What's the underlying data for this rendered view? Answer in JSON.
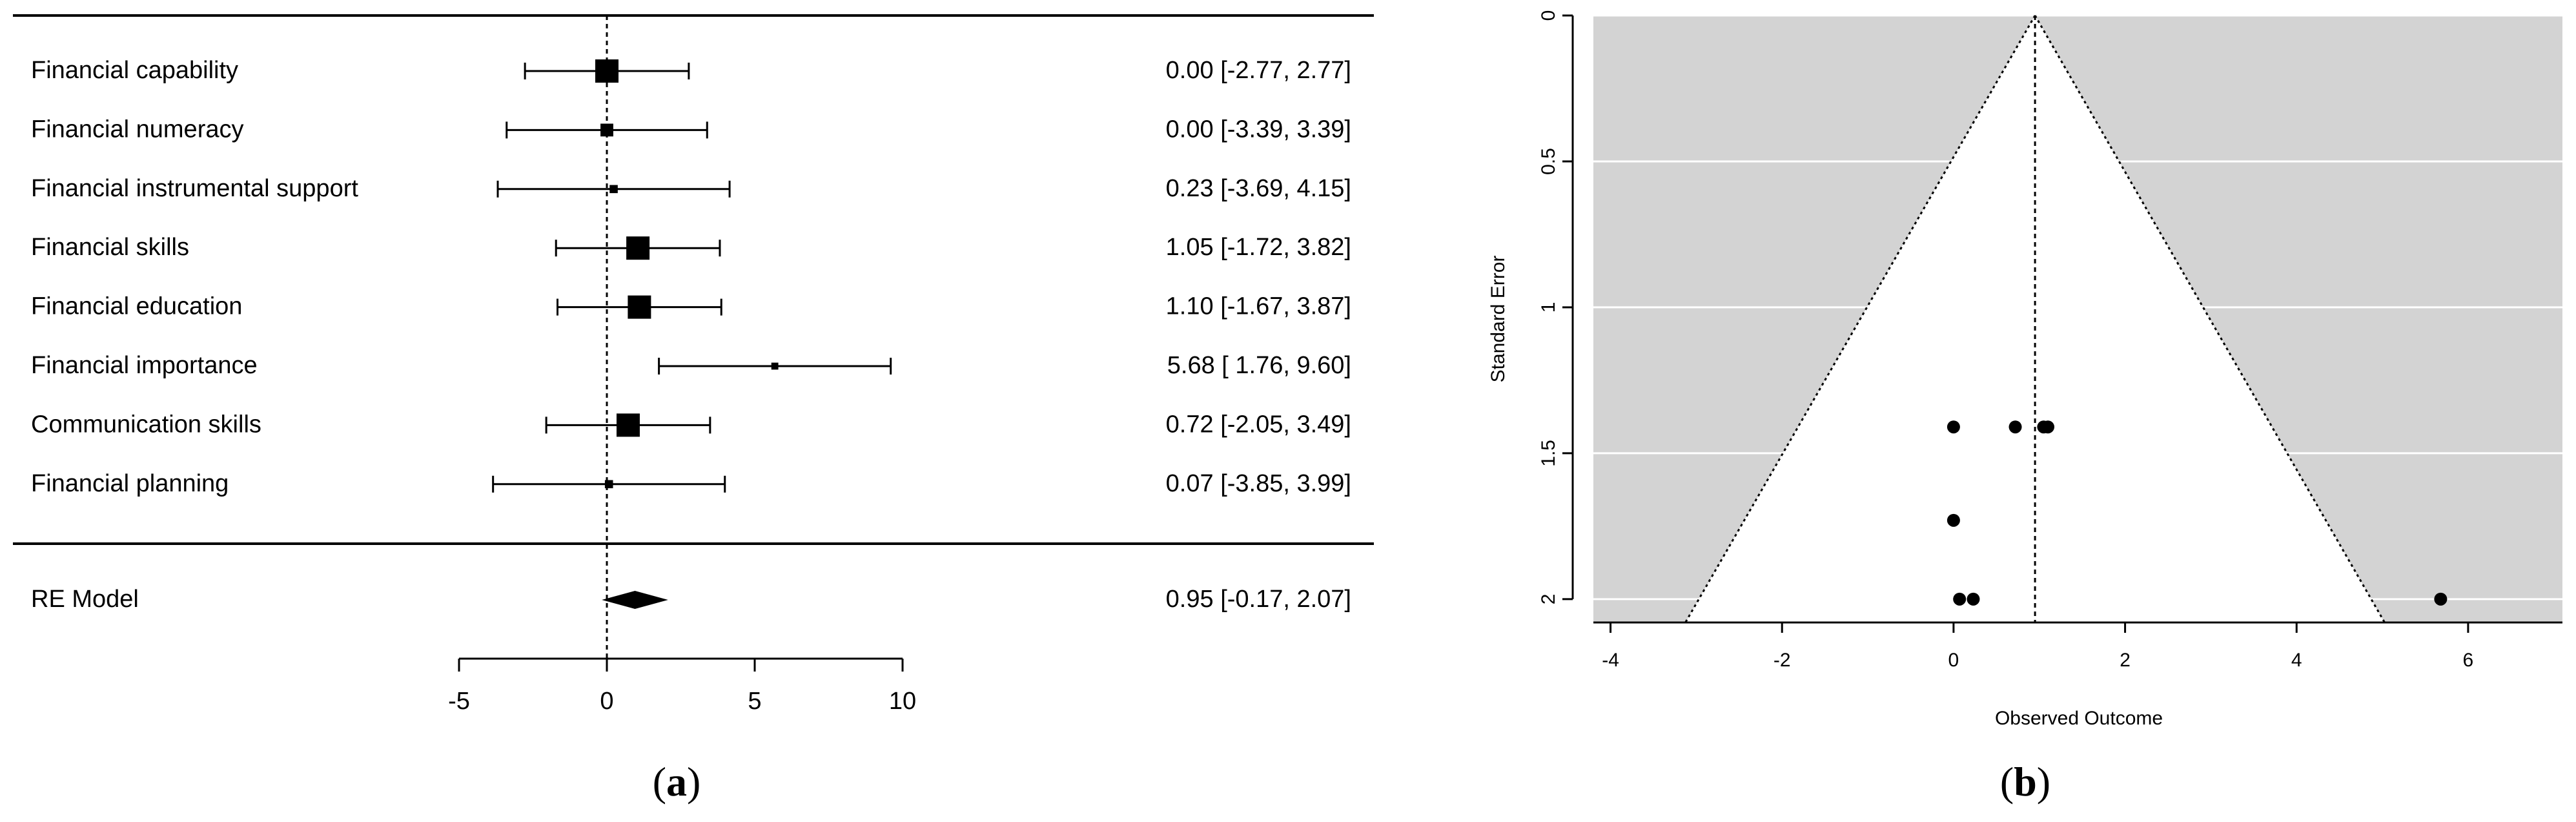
{
  "colors": {
    "ink": "#000000",
    "funnel_bg": "#d3d3d3",
    "funnel_inner": "#ffffff",
    "gridline": "#ffffff"
  },
  "captions": {
    "a": {
      "open": "(",
      "letter": "a",
      "close": ")"
    },
    "b": {
      "open": "(",
      "letter": "b",
      "close": ")"
    }
  },
  "chart_data": [
    {
      "type": "forest",
      "panel": "a",
      "x_ticks": [
        -5,
        0,
        5,
        10
      ],
      "x_tick_labels": [
        "-5",
        "0",
        "5",
        "10"
      ],
      "xlim": [
        -5,
        10
      ],
      "reference_line": 0,
      "studies": [
        {
          "label": "Financial capability",
          "estimate": 0.0,
          "lower": -2.77,
          "upper": 2.77,
          "weight": 1.0,
          "text": "0.00 [-2.77, 2.77]"
        },
        {
          "label": "Financial numeracy",
          "estimate": 0.0,
          "lower": -3.39,
          "upper": 3.39,
          "weight": 0.55,
          "text": "0.00 [-3.39, 3.39]"
        },
        {
          "label": "Financial instrumental support",
          "estimate": 0.23,
          "lower": -3.69,
          "upper": 4.15,
          "weight": 0.35,
          "text": "0.23 [-3.69, 4.15]"
        },
        {
          "label": "Financial skills",
          "estimate": 1.05,
          "lower": -1.72,
          "upper": 3.82,
          "weight": 1.0,
          "text": "1.05 [-1.72, 3.82]"
        },
        {
          "label": "Financial education",
          "estimate": 1.1,
          "lower": -1.67,
          "upper": 3.87,
          "weight": 1.0,
          "text": "1.10 [-1.67, 3.87]"
        },
        {
          "label": "Financial importance",
          "estimate": 5.68,
          "lower": 1.76,
          "upper": 9.6,
          "weight": 0.3,
          "text": "5.68 [ 1.76, 9.60]"
        },
        {
          "label": "Communication skills",
          "estimate": 0.72,
          "lower": -2.05,
          "upper": 3.49,
          "weight": 1.0,
          "text": "0.72 [-2.05, 3.49]"
        },
        {
          "label": "Financial planning",
          "estimate": 0.07,
          "lower": -3.85,
          "upper": 3.99,
          "weight": 0.35,
          "text": "0.07 [-3.85, 3.99]"
        }
      ],
      "summary": {
        "label": "RE Model",
        "estimate": 0.95,
        "lower": -0.17,
        "upper": 2.07,
        "text": "0.95 [-0.17, 2.07]"
      }
    },
    {
      "type": "scatter",
      "subtype": "funnel",
      "panel": "b",
      "xlabel": "Observed Outcome",
      "ylabel": "Standard Error",
      "xlim": [
        -4.2,
        7.1
      ],
      "ylim": [
        0,
        2.08
      ],
      "y_inverted": true,
      "x_ticks": [
        -4,
        -2,
        0,
        2,
        4,
        6
      ],
      "x_tick_labels": [
        "-4",
        "-2",
        "0",
        "2",
        "4",
        "6"
      ],
      "y_ticks": [
        0,
        0.5,
        1,
        1.5,
        2
      ],
      "y_tick_labels": [
        "0",
        "0.5",
        "1",
        "1.5",
        "2"
      ],
      "center_estimate": 0.95,
      "z_value": 1.96,
      "points": [
        {
          "x": 0.0,
          "y": 1.41
        },
        {
          "x": 0.72,
          "y": 1.41
        },
        {
          "x": 1.05,
          "y": 1.41
        },
        {
          "x": 1.1,
          "y": 1.41
        },
        {
          "x": 0.0,
          "y": 1.73
        },
        {
          "x": 0.07,
          "y": 2.0
        },
        {
          "x": 0.23,
          "y": 2.0
        },
        {
          "x": 5.68,
          "y": 2.0
        }
      ]
    }
  ]
}
